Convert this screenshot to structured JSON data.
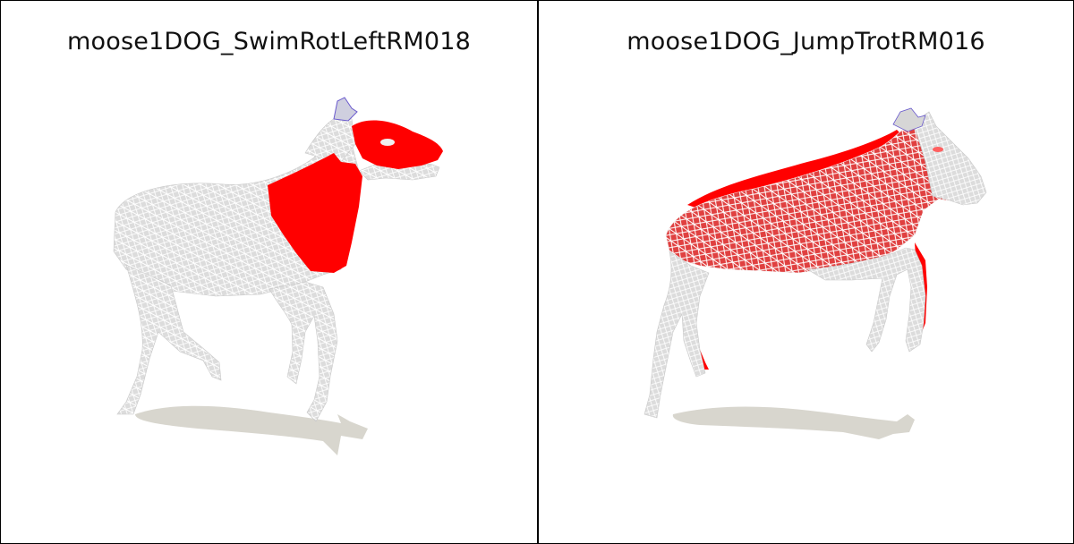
{
  "panels": [
    {
      "title": "moose1DOG_SwimRotLeftRM018"
    },
    {
      "title": "moose1DOG_JumpTrotRM016"
    }
  ],
  "colors": {
    "mesh": "#d9d9d9",
    "wire": "#ffffff",
    "highlight": "#ff0000",
    "shadow": "#d8d6ce",
    "border": "#000000"
  }
}
